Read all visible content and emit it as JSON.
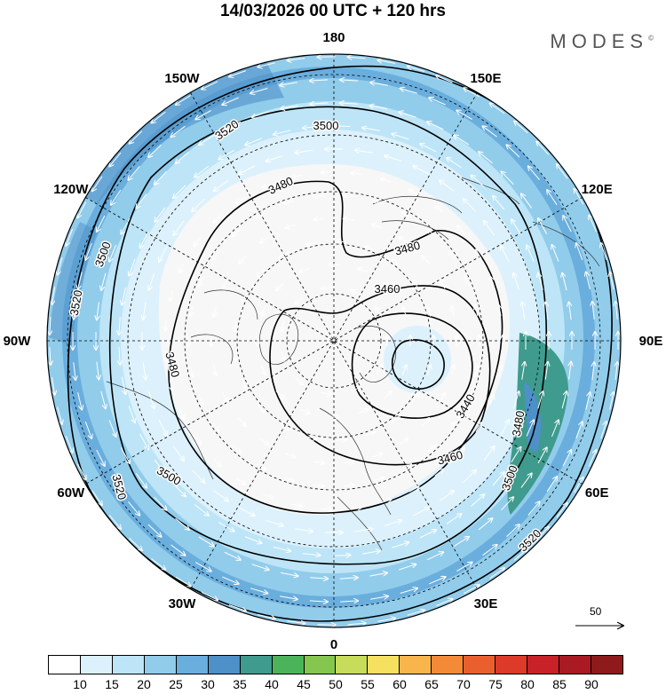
{
  "title": "14/03/2026  00 UTC  + 120 hrs",
  "logo": "MODES",
  "logo_mark": "©",
  "longitude_labels": [
    {
      "text": "180",
      "lon": 180
    },
    {
      "text": "150E",
      "lon": 150
    },
    {
      "text": "120E",
      "lon": 120
    },
    {
      "text": "90E",
      "lon": 90
    },
    {
      "text": "60E",
      "lon": 60
    },
    {
      "text": "30E",
      "lon": 30
    },
    {
      "text": "0",
      "lon": 0
    },
    {
      "text": "30W",
      "lon": -30
    },
    {
      "text": "60W",
      "lon": -60
    },
    {
      "text": "90W",
      "lon": -90
    },
    {
      "text": "120W",
      "lon": -120
    },
    {
      "text": "150W",
      "lon": -150
    }
  ],
  "contour_labels": [
    "3520",
    "3500",
    "3480",
    "3480",
    "3460",
    "3440",
    "3460",
    "3480",
    "3500",
    "3520",
    "3500",
    "3520",
    "3480",
    "3500",
    "3520"
  ],
  "reference_vector": {
    "label": "50"
  },
  "colorbar": {
    "colors": [
      "#ffffff",
      "#dcf1fc",
      "#bde5f7",
      "#92cceb",
      "#6aaedd",
      "#4e90c8",
      "#3f9b8d",
      "#4bb45a",
      "#85c64e",
      "#c7dc5a",
      "#f6e05f",
      "#f8b54c",
      "#f28a38",
      "#e9602e",
      "#dd3a2a",
      "#c82228",
      "#aa1a22",
      "#8e1a1c"
    ],
    "labels": [
      "10",
      "15",
      "20",
      "25",
      "30",
      "35",
      "40",
      "45",
      "50",
      "55",
      "60",
      "65",
      "70",
      "75",
      "80",
      "85",
      "90"
    ]
  },
  "colors": {
    "land": "#f2f2f2",
    "ocean_fill": "#ffffff",
    "contour": "#000000",
    "wind_arrows": "#ffffff"
  }
}
